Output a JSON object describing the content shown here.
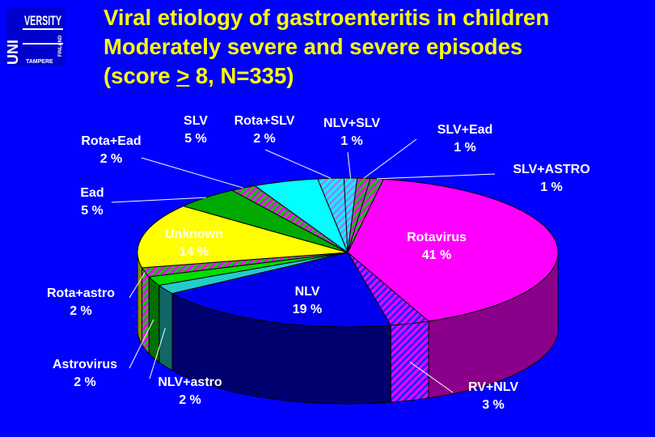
{
  "logo": {
    "line1": "UNI",
    "line2": "VERSITY",
    "line3": "TAMPERE",
    "line4": "FINLAND"
  },
  "title": {
    "line1": "Viral etiology of gastroenteritis in children",
    "line2": "Moderately severe and severe episodes",
    "line3_pre": "(score ",
    "line3_sym": ">",
    "line3_post": " 8, N=335)"
  },
  "chart_data": {
    "type": "pie",
    "title": "Viral etiology of gastroenteritis in children Moderately severe and severe episodes (score > 8, N=335)",
    "units": "%",
    "slices": [
      {
        "name": "Rotavirus",
        "pct_label": "41 %",
        "value": 41,
        "color": "#ff00ff",
        "dark": "#8a008a",
        "pattern": ""
      },
      {
        "name": "RV+NLV",
        "pct_label": "3 %",
        "value": 3,
        "color": "#ff00ff",
        "dark": "#8a008a",
        "pattern": "blue-hatch"
      },
      {
        "name": "NLV",
        "pct_label": "19 %",
        "value": 19,
        "color": "#0000ee",
        "dark": "#00006e",
        "pattern": ""
      },
      {
        "name": "NLV+astro",
        "pct_label": "2 %",
        "value": 2,
        "color": "#22cccc",
        "dark": "#116666",
        "pattern": ""
      },
      {
        "name": "Astrovirus",
        "pct_label": "2 %",
        "value": 2,
        "color": "#00dd00",
        "dark": "#007000",
        "pattern": ""
      },
      {
        "name": "Rota+astro",
        "pct_label": "2 %",
        "value": 2,
        "color": "#ff00ff",
        "dark": "#8a008a",
        "pattern": "green-hatch"
      },
      {
        "name": "Unknown",
        "pct_label": "14 %",
        "value": 14,
        "color": "#ffff00",
        "dark": "#8a8a00",
        "pattern": ""
      },
      {
        "name": "Ead",
        "pct_label": "5 %",
        "value": 5,
        "color": "#00aa00",
        "dark": "#005500",
        "pattern": ""
      },
      {
        "name": "Rota+Ead",
        "pct_label": "2 %",
        "value": 2,
        "color": "#ff00ff",
        "dark": "#8a008a",
        "pattern": "green-hatch"
      },
      {
        "name": "SLV",
        "pct_label": "5 %",
        "value": 5,
        "color": "#00ffff",
        "dark": "#008080",
        "pattern": ""
      },
      {
        "name": "Rota+SLV",
        "pct_label": "2 %",
        "value": 2,
        "color": "#ff00ff",
        "dark": "#8a008a",
        "pattern": "cyan-hatch"
      },
      {
        "name": "NLV+SLV",
        "pct_label": "1 %",
        "value": 1,
        "color": "#0000ee",
        "dark": "#00006e",
        "pattern": "cyan-hatch"
      },
      {
        "name": "SLV+Ead",
        "pct_label": "1 %",
        "value": 1,
        "color": "#00ffff",
        "dark": "#008080",
        "pattern": "green-hatch"
      },
      {
        "name": "SLV+ASTRO",
        "pct_label": "1 %",
        "value": 1,
        "color": "#00ffff",
        "dark": "#008080",
        "pattern": "green-hatch"
      }
    ]
  }
}
